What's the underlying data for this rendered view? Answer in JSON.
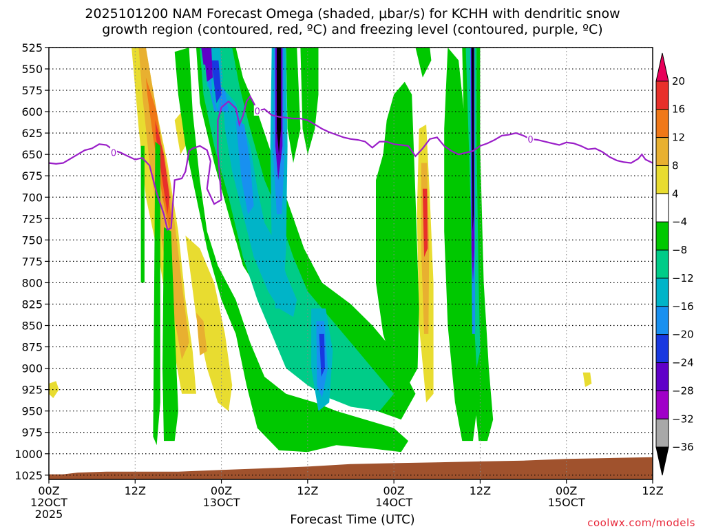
{
  "chart_data": {
    "type": "heatmap",
    "title_line1": "2025101200 NAM Forecast Omega (shaded, μbar/s) for KCHH with dendritic snow",
    "title_line2": "growth region (contoured, red, ºC) and freezing level (contoured, purple, ºC)",
    "xlabel": "Forecast Time (UTC)",
    "ylabel": "",
    "y_axis": {
      "scale": "inverted-pressure",
      "ylim": [
        1030,
        525
      ],
      "ticks": [
        525,
        550,
        575,
        600,
        625,
        650,
        675,
        700,
        725,
        750,
        775,
        800,
        825,
        850,
        875,
        900,
        925,
        950,
        975,
        1000,
        1025
      ]
    },
    "x_axis": {
      "xlim_hours": [
        0,
        84
      ],
      "ticks": [
        {
          "hour": 0,
          "lines": [
            "00Z",
            "12OCT",
            "2025"
          ]
        },
        {
          "hour": 12,
          "lines": [
            "12Z"
          ]
        },
        {
          "hour": 24,
          "lines": [
            "00Z",
            "13OCT"
          ]
        },
        {
          "hour": 36,
          "lines": [
            "12Z"
          ]
        },
        {
          "hour": 48,
          "lines": [
            "00Z",
            "14OCT"
          ]
        },
        {
          "hour": 60,
          "lines": [
            "12Z"
          ]
        },
        {
          "hour": 72,
          "lines": [
            "00Z",
            "15OCT"
          ]
        },
        {
          "hour": 84,
          "lines": [
            "12Z"
          ]
        }
      ]
    },
    "grid": true,
    "colorbar": {
      "position": "right",
      "levels": [
        20,
        16,
        12,
        8,
        4,
        -4,
        -8,
        -12,
        -16,
        -20,
        -24,
        -28,
        -32,
        -36
      ],
      "colors": [
        "#e8005a",
        "#e8302a",
        "#f07818",
        "#e8b030",
        "#e8dc30",
        "#ffffff",
        "#00c800",
        "#00cc88",
        "#00b4c8",
        "#1890f0",
        "#1838e0",
        "#6000c8",
        "#a000c8",
        "#a8a8a8",
        "#000000"
      ]
    },
    "freezing_level": {
      "label": "0",
      "color": "#9a1ec8",
      "points": [
        [
          0,
          660
        ],
        [
          1,
          661
        ],
        [
          2,
          660
        ],
        [
          3,
          655
        ],
        [
          4,
          650
        ],
        [
          5,
          645
        ],
        [
          6,
          643
        ],
        [
          7,
          638
        ],
        [
          8,
          639
        ],
        [
          9,
          645
        ],
        [
          10,
          648
        ],
        [
          11,
          652
        ],
        [
          12,
          656
        ],
        [
          13,
          654
        ],
        [
          14,
          663
        ],
        [
          15,
          695
        ],
        [
          16,
          720
        ],
        [
          16.5,
          738
        ],
        [
          17,
          736
        ],
        [
          17.5,
          680
        ],
        [
          18.5,
          678
        ],
        [
          19,
          670
        ],
        [
          19.5,
          646
        ],
        [
          20,
          643
        ],
        [
          21,
          640
        ],
        [
          22,
          645
        ],
        [
          22.5,
          658
        ],
        [
          22,
          690
        ],
        [
          23,
          708
        ],
        [
          24,
          703
        ],
        [
          23.5,
          645
        ],
        [
          23.5,
          610
        ],
        [
          24,
          595
        ],
        [
          25,
          588
        ],
        [
          26,
          596
        ],
        [
          26.5,
          615
        ],
        [
          27,
          605
        ],
        [
          27.5,
          588
        ],
        [
          28,
          582
        ],
        [
          28.5,
          590
        ],
        [
          29,
          599
        ],
        [
          30,
          597
        ],
        [
          31,
          604
        ],
        [
          32,
          606
        ],
        [
          33,
          607
        ],
        [
          34,
          608
        ],
        [
          35,
          608
        ],
        [
          36,
          610
        ],
        [
          37,
          615
        ],
        [
          38,
          620
        ],
        [
          39,
          624
        ],
        [
          40,
          627
        ],
        [
          41,
          630
        ],
        [
          42,
          632
        ],
        [
          43,
          633
        ],
        [
          44,
          635
        ],
        [
          45,
          642
        ],
        [
          46,
          635
        ],
        [
          47,
          635
        ],
        [
          48,
          638
        ],
        [
          49,
          639
        ],
        [
          50,
          640
        ],
        [
          51,
          652
        ],
        [
          52,
          643
        ],
        [
          53,
          632
        ],
        [
          54,
          630
        ],
        [
          55,
          640
        ],
        [
          56,
          646
        ],
        [
          57,
          650
        ],
        [
          58,
          648
        ],
        [
          59,
          646
        ],
        [
          60,
          640
        ],
        [
          61,
          637
        ],
        [
          62,
          633
        ],
        [
          63,
          628
        ],
        [
          64,
          627
        ],
        [
          65,
          625
        ],
        [
          66,
          628
        ],
        [
          67,
          632
        ],
        [
          68,
          633
        ],
        [
          69,
          635
        ],
        [
          70,
          637
        ],
        [
          71,
          639
        ],
        [
          72,
          636
        ],
        [
          73,
          637
        ],
        [
          74,
          640
        ],
        [
          75,
          644
        ],
        [
          76,
          643
        ],
        [
          77,
          647
        ],
        [
          78,
          653
        ],
        [
          79,
          657
        ],
        [
          80,
          659
        ],
        [
          81,
          660
        ],
        [
          82,
          655
        ],
        [
          82.5,
          650
        ],
        [
          83,
          656
        ],
        [
          84,
          660
        ]
      ]
    },
    "terrain": {
      "color": "#a0522d",
      "surface": [
        [
          0,
          1024
        ],
        [
          2,
          1024
        ],
        [
          4,
          1022
        ],
        [
          8,
          1021
        ],
        [
          12,
          1021
        ],
        [
          18,
          1021
        ],
        [
          24,
          1019
        ],
        [
          30,
          1017
        ],
        [
          36,
          1015
        ],
        [
          42,
          1012
        ],
        [
          48,
          1011
        ],
        [
          54,
          1010
        ],
        [
          60,
          1009
        ],
        [
          66,
          1008
        ],
        [
          72,
          1006
        ],
        [
          78,
          1005
        ],
        [
          84,
          1004
        ]
      ]
    }
  },
  "credit": "coolwx.com/models"
}
